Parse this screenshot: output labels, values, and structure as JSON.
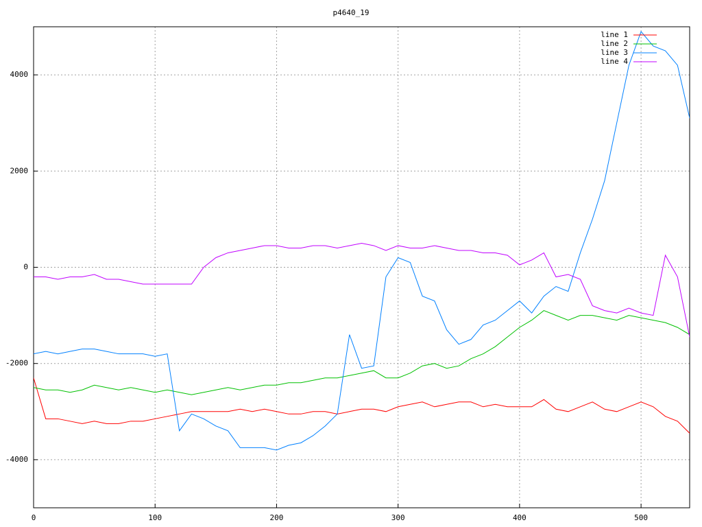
{
  "chart_data": {
    "type": "line",
    "title": "p4640_19",
    "x": [
      0,
      10,
      20,
      30,
      40,
      50,
      60,
      70,
      80,
      90,
      100,
      110,
      120,
      130,
      140,
      150,
      160,
      170,
      180,
      190,
      200,
      210,
      220,
      230,
      240,
      250,
      260,
      270,
      280,
      290,
      300,
      310,
      320,
      330,
      340,
      350,
      360,
      370,
      380,
      390,
      400,
      410,
      420,
      430,
      440,
      450,
      460,
      470,
      480,
      490,
      500,
      510,
      520,
      530,
      540
    ],
    "series": [
      {
        "name": "line 1",
        "color": "#ff0000",
        "values": [
          -2300,
          -3150,
          -3150,
          -3200,
          -3250,
          -3200,
          -3250,
          -3250,
          -3200,
          -3200,
          -3150,
          -3100,
          -3050,
          -3000,
          -3000,
          -3000,
          -3000,
          -2950,
          -3000,
          -2950,
          -3000,
          -3050,
          -3050,
          -3000,
          -3000,
          -3050,
          -3000,
          -2950,
          -2950,
          -3000,
          -2900,
          -2850,
          -2800,
          -2900,
          -2850,
          -2800,
          -2800,
          -2900,
          -2850,
          -2900,
          -2900,
          -2900,
          -2750,
          -2950,
          -3000,
          -2900,
          -2800,
          -2950,
          -3000,
          -2900,
          -2800,
          -2900,
          -3100,
          -3200,
          -3450
        ]
      },
      {
        "name": "line 2",
        "color": "#00c000",
        "values": [
          -2500,
          -2550,
          -2550,
          -2600,
          -2550,
          -2450,
          -2500,
          -2550,
          -2500,
          -2550,
          -2600,
          -2550,
          -2600,
          -2650,
          -2600,
          -2550,
          -2500,
          -2550,
          -2500,
          -2450,
          -2450,
          -2400,
          -2400,
          -2350,
          -2300,
          -2300,
          -2250,
          -2200,
          -2150,
          -2300,
          -2300,
          -2200,
          -2050,
          -2000,
          -2100,
          -2050,
          -1900,
          -1800,
          -1650,
          -1450,
          -1250,
          -1100,
          -900,
          -1000,
          -1100,
          -1000,
          -1000,
          -1050,
          -1100,
          -1000,
          -1050,
          -1100,
          -1150,
          -1250,
          -1400
        ]
      },
      {
        "name": "line 3",
        "color": "#0080ff",
        "values": [
          -1800,
          -1750,
          -1800,
          -1750,
          -1700,
          -1700,
          -1750,
          -1800,
          -1800,
          -1800,
          -1850,
          -1800,
          -3400,
          -3050,
          -3150,
          -3300,
          -3400,
          -3750,
          -3750,
          -3750,
          -3800,
          -3700,
          -3650,
          -3500,
          -3300,
          -3050,
          -1400,
          -2100,
          -2050,
          -200,
          200,
          100,
          -600,
          -700,
          -1300,
          -1600,
          -1500,
          -1200,
          -1100,
          -900,
          -700,
          -950,
          -600,
          -400,
          -500,
          300,
          1000,
          1800,
          3000,
          4200,
          4900,
          4600,
          4500,
          4200,
          3100
        ]
      },
      {
        "name": "line 4",
        "color": "#c000ff",
        "values": [
          -200,
          -200,
          -250,
          -200,
          -200,
          -150,
          -250,
          -250,
          -300,
          -350,
          -350,
          -350,
          -350,
          -350,
          0,
          200,
          300,
          350,
          400,
          450,
          450,
          400,
          400,
          450,
          450,
          400,
          450,
          500,
          450,
          350,
          450,
          400,
          400,
          450,
          400,
          350,
          350,
          300,
          300,
          250,
          50,
          150,
          300,
          -200,
          -150,
          -250,
          -800,
          -900,
          -950,
          -850,
          -950,
          -1000,
          250,
          -200,
          -1450
        ]
      }
    ],
    "xlim": [
      0,
      540
    ],
    "ylim": [
      -5000,
      5000
    ],
    "xticks": [
      0,
      100,
      200,
      300,
      400,
      500
    ],
    "yticks": [
      -4000,
      -2000,
      0,
      2000,
      4000
    ],
    "grid": true,
    "legend": "upper right"
  }
}
